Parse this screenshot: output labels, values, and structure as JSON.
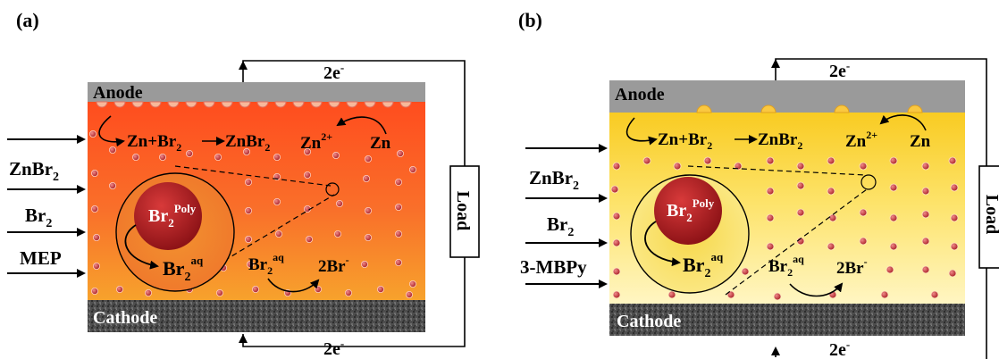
{
  "panels": [
    {
      "label": "(a)",
      "anode": "Anode",
      "cathode": "Cathode",
      "reaction": {
        "zn": "Zn",
        "plus": "+",
        "br": "Br",
        "sub": "2",
        "product": "ZnBr",
        "product_sub": "2"
      },
      "zn_ion": {
        "base": "Zn",
        "sup": "2+"
      },
      "zn": "Zn",
      "electron_top": {
        "base": "2e",
        "sup": "-"
      },
      "electron_bottom": {
        "base": "2e",
        "sup": "-"
      },
      "load": "Load",
      "inputs": [
        {
          "base": "ZnBr",
          "sub": "2"
        },
        {
          "base": "Br",
          "sub": "2"
        },
        {
          "base": "MEP",
          "sub": ""
        }
      ],
      "br2_poly": {
        "base": "Br",
        "sub": "2",
        "sup": "Poly"
      },
      "br2_aq_circle": {
        "base": "Br",
        "sub": "2",
        "sup": "aq"
      },
      "br2_aq_right": {
        "base": "Br",
        "sub": "2",
        "sup": "aq"
      },
      "two_br": {
        "base": "2Br",
        "sup": "-"
      },
      "electrolyte_top_color": "#ff4a1a",
      "electrolyte_bottom_color": "#f7a32c"
    },
    {
      "label": "(b)",
      "anode": "Anode",
      "cathode": "Cathode",
      "reaction": {
        "zn": "Zn",
        "plus": "+",
        "br": "Br",
        "sub": "2",
        "product": "ZnBr",
        "product_sub": "2"
      },
      "zn_ion": {
        "base": "Zn",
        "sup": "2+"
      },
      "zn": "Zn",
      "electron_top": {
        "base": "2e",
        "sup": "-"
      },
      "electron_bottom": {
        "base": "2e",
        "sup": "-"
      },
      "load": "Load",
      "inputs": [
        {
          "base": "ZnBr",
          "sub": "2"
        },
        {
          "base": "Br",
          "sub": "2"
        },
        {
          "base": "3-MBPy",
          "sub": ""
        }
      ],
      "br2_poly": {
        "base": "Br",
        "sub": "2",
        "sup": "Poly"
      },
      "br2_aq_circle": {
        "base": "Br",
        "sub": "2",
        "sup": "aq"
      },
      "br2_aq_right": {
        "base": "Br",
        "sub": "2",
        "sup": "aq"
      },
      "two_br": {
        "base": "2Br",
        "sup": "-"
      },
      "electrolyte_top_color": "#f6c81a",
      "electrolyte_bottom_color": "#fff7c8"
    }
  ],
  "colors": {
    "anode": "#9a9a9a",
    "cathode": "#4a4a4a",
    "droplet": "#b8282c",
    "poly_sphere": "#b41e22"
  }
}
